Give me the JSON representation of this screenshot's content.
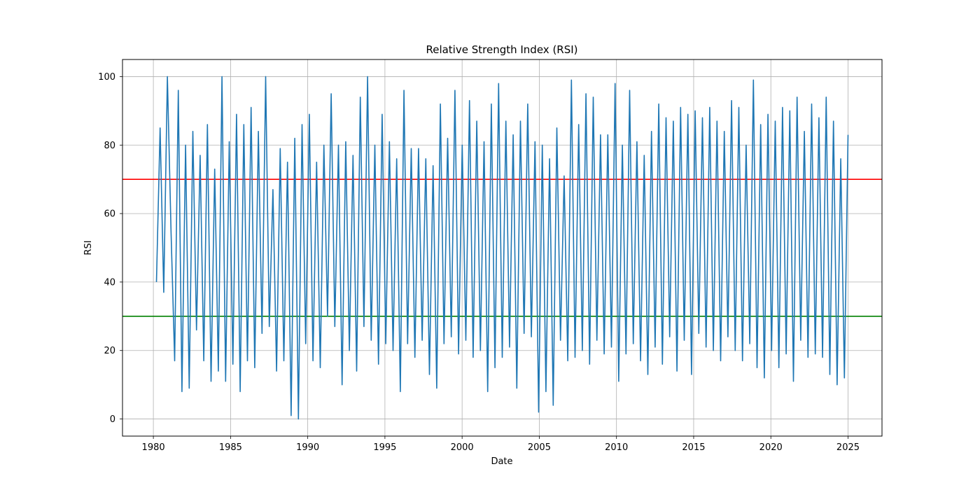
{
  "chart_data": {
    "type": "line",
    "title": "Relative Strength Index (RSI)",
    "xlabel": "Date",
    "ylabel": "RSI",
    "xlim": [
      1978.0,
      2027.2
    ],
    "ylim": [
      -5,
      105
    ],
    "x_ticks": [
      1980,
      1985,
      1990,
      1995,
      2000,
      2005,
      2010,
      2015,
      2020,
      2025
    ],
    "x_tick_labels": [
      "1980",
      "1985",
      "1990",
      "1995",
      "2000",
      "2005",
      "2010",
      "2015",
      "2020",
      "2025"
    ],
    "y_ticks": [
      0,
      20,
      40,
      60,
      80,
      100
    ],
    "y_tick_labels": [
      "0",
      "20",
      "40",
      "60",
      "80",
      "100"
    ],
    "grid": true,
    "x_start": 1980.2,
    "x_end": 2025.0,
    "series": [
      {
        "color": "#1f77b4",
        "sampled": true,
        "values": [
          40,
          85,
          37,
          100,
          55,
          17,
          96,
          8,
          80,
          9,
          84,
          26,
          77,
          17,
          86,
          11,
          73,
          14,
          100,
          11,
          81,
          16,
          89,
          8,
          86,
          17,
          91,
          15,
          84,
          25,
          100,
          27,
          67,
          14,
          79,
          17,
          75,
          1,
          82,
          0,
          86,
          22,
          89,
          17,
          75,
          15,
          80,
          30,
          95,
          27,
          80,
          10,
          81,
          20,
          77,
          14,
          94,
          27,
          100,
          23,
          80,
          16,
          89,
          22,
          81,
          20,
          76,
          8,
          96,
          22,
          79,
          18,
          79,
          23,
          76,
          13,
          74,
          9,
          92,
          22,
          82,
          24,
          96,
          19,
          80,
          23,
          93,
          18,
          87,
          20,
          81,
          8,
          92,
          15,
          98,
          18,
          87,
          21,
          83,
          9,
          87,
          25,
          92,
          24,
          81,
          2,
          80,
          8,
          76,
          4,
          85,
          23,
          71,
          17,
          99,
          18,
          86,
          20,
          95,
          16,
          94,
          23,
          83,
          19,
          83,
          21,
          98,
          11,
          80,
          19,
          96,
          22,
          81,
          17,
          77,
          13,
          84,
          21,
          92,
          16,
          88,
          24,
          87,
          14,
          91,
          23,
          89,
          13,
          90,
          25,
          88,
          21,
          91,
          20,
          87,
          17,
          84,
          24,
          93,
          20,
          91,
          17,
          80,
          22,
          99,
          15,
          86,
          12,
          89,
          20,
          87,
          15,
          91,
          19,
          90,
          11,
          94,
          23,
          84,
          18,
          92,
          19,
          88,
          18,
          94,
          13,
          87,
          10,
          76,
          12,
          83
        ]
      }
    ],
    "hlines": [
      {
        "y": 70,
        "color": "#ff0000"
      },
      {
        "y": 30,
        "color": "#008000"
      }
    ]
  }
}
